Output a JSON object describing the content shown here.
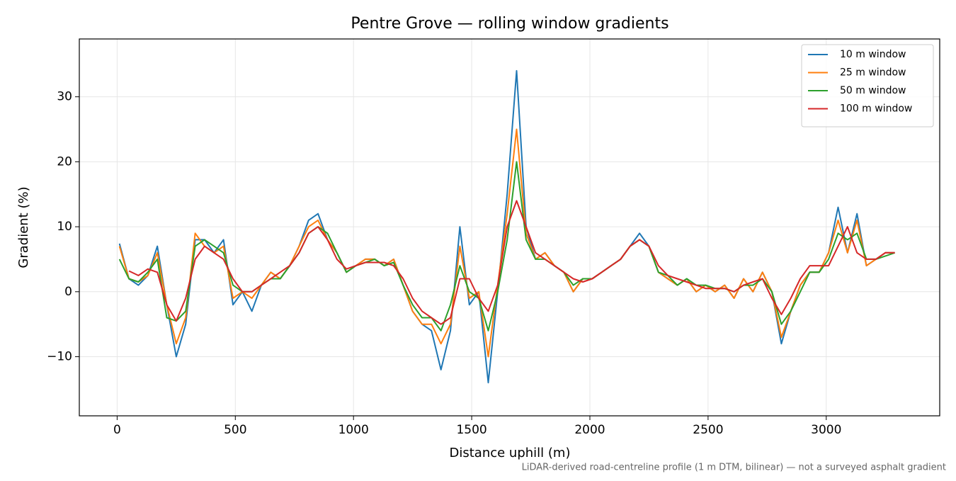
{
  "chart_data": {
    "type": "line",
    "title": "Pentre Grove — rolling window gradients",
    "xlabel": "Distance uphill (m)",
    "ylabel": "Gradient (%)",
    "footnote": "LiDAR-derived road-centreline profile (1 m DTM, bilinear) — not a surveyed asphalt gradient",
    "xlim": [
      -160,
      3480
    ],
    "ylim": [
      -19.1,
      38.9
    ],
    "xticks": [
      0,
      500,
      1000,
      1500,
      2000,
      2500,
      3000
    ],
    "yticks": [
      {
        "value": -10,
        "label": "−10"
      },
      0,
      10,
      20,
      30
    ],
    "grid": true,
    "legend": "upper right",
    "x": [
      10,
      50,
      90,
      130,
      170,
      210,
      250,
      290,
      330,
      370,
      410,
      450,
      490,
      530,
      570,
      610,
      650,
      690,
      730,
      770,
      810,
      850,
      890,
      930,
      970,
      1010,
      1050,
      1090,
      1130,
      1170,
      1210,
      1250,
      1290,
      1330,
      1370,
      1410,
      1450,
      1490,
      1530,
      1570,
      1610,
      1650,
      1690,
      1730,
      1770,
      1810,
      1850,
      1890,
      1930,
      1970,
      2010,
      2050,
      2090,
      2130,
      2170,
      2210,
      2250,
      2290,
      2330,
      2370,
      2410,
      2450,
      2490,
      2530,
      2570,
      2610,
      2650,
      2690,
      2730,
      2770,
      2810,
      2850,
      2890,
      2930,
      2970,
      3010,
      3050,
      3090,
      3130,
      3170,
      3210,
      3250,
      3290
    ],
    "series": [
      {
        "name": "10 m window",
        "color": "#1f77b4",
        "values": [
          7.4,
          2,
          1,
          2.5,
          7,
          -2,
          -10,
          -5,
          8,
          8,
          6,
          8,
          -2,
          0,
          -3,
          1,
          3,
          2,
          4,
          7,
          11,
          12,
          8,
          6,
          3,
          4,
          5,
          5,
          4,
          5,
          1,
          -3,
          -5,
          -6,
          -12,
          -6,
          10,
          -2,
          0,
          -14,
          0,
          15,
          34,
          10,
          5,
          6,
          4,
          3,
          0,
          2,
          2,
          3,
          4,
          5,
          7,
          9,
          7,
          3,
          2,
          1,
          2,
          0,
          1,
          0,
          1,
          -1,
          2,
          0,
          3,
          0,
          -8,
          -3,
          1,
          3,
          3,
          6,
          13,
          6,
          12,
          4,
          5,
          6,
          6
        ]
      },
      {
        "name": "25 m window",
        "color": "#ff7f0e",
        "values": [
          7,
          2,
          1.5,
          2.5,
          6,
          -2,
          -8,
          -4,
          9,
          7,
          6,
          7,
          -1,
          0,
          -1,
          1,
          3,
          2,
          4,
          7,
          10,
          11,
          8,
          6,
          3,
          4,
          5,
          5,
          4,
          5,
          1,
          -3,
          -5,
          -5,
          -8,
          -5,
          7,
          -1,
          0,
          -10,
          1,
          12,
          25,
          9,
          5,
          6,
          4,
          3,
          0,
          2,
          2,
          3,
          4,
          5,
          7,
          8,
          7,
          3,
          2,
          1,
          2,
          0,
          1,
          0,
          1,
          -1,
          2,
          0,
          3,
          0,
          -7,
          -3,
          1,
          3,
          3,
          6,
          11,
          6,
          11,
          4,
          5,
          6,
          6
        ]
      },
      {
        "name": "50 m window",
        "color": "#2ca02c",
        "values": [
          5,
          2,
          1.5,
          3,
          5,
          -4,
          -4.5,
          -3,
          7,
          8,
          7,
          6,
          1,
          0,
          0,
          1,
          2,
          2,
          4,
          6,
          9,
          10,
          9,
          6,
          3,
          4,
          4.5,
          5,
          4,
          4.5,
          1,
          -2,
          -4,
          -4,
          -6,
          -2,
          4,
          0,
          -1,
          -6,
          0,
          8,
          20,
          8,
          5,
          5,
          4,
          3,
          1,
          2,
          2,
          3,
          4,
          5,
          7,
          8,
          7,
          3,
          2.5,
          1,
          2,
          1,
          1,
          0.5,
          0.5,
          0,
          1,
          1,
          2,
          0,
          -5,
          -3,
          0,
          3,
          3,
          5,
          9,
          8,
          9,
          5,
          5,
          5.5,
          6
        ]
      },
      {
        "name": "100 m window",
        "color": "#d62728",
        "values": [
          null,
          3.2,
          2.5,
          3.5,
          3,
          -2,
          -4.5,
          -1,
          5,
          7,
          6,
          5,
          2,
          0,
          0,
          1,
          2,
          3,
          4,
          6,
          9,
          10,
          8,
          5,
          3.5,
          4,
          4.5,
          4.5,
          4.5,
          4,
          2,
          -1,
          -3,
          -4,
          -5,
          -4,
          2,
          2,
          -1,
          -3,
          1,
          10,
          14,
          10,
          6,
          5,
          4,
          3,
          2,
          1.5,
          2,
          3,
          4,
          5,
          7,
          8,
          7,
          4,
          2.5,
          2,
          1.5,
          1,
          0.5,
          0.5,
          0.5,
          0,
          1,
          1.5,
          2,
          -1,
          -3.5,
          -1,
          2,
          4,
          4,
          4,
          7,
          10,
          6,
          5,
          5,
          6,
          6
        ]
      }
    ]
  }
}
